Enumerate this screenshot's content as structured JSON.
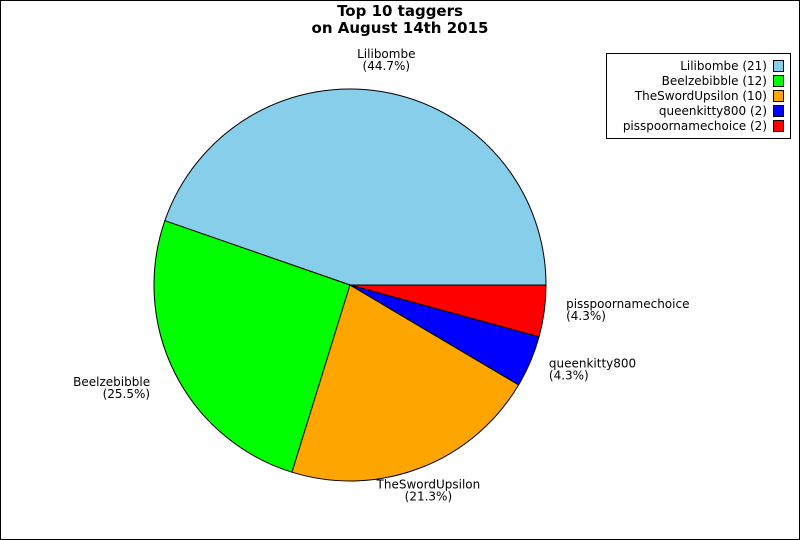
{
  "chart_data": {
    "type": "pie",
    "title": [
      "Top 10 taggers",
      "on August 14th 2015"
    ],
    "slices": [
      {
        "name": "Lilibombe",
        "value": 21,
        "percent_label": "(44.7%)",
        "legend": "Lilibombe (21)",
        "color": "#87ceeb"
      },
      {
        "name": "Beelzebibble",
        "value": 12,
        "percent_label": "(25.5%)",
        "legend": "Beelzebibble (12)",
        "color": "#00ff00"
      },
      {
        "name": "TheSwordUpsilon",
        "value": 10,
        "percent_label": "(21.3%)",
        "legend": "TheSwordUpsilon (10)",
        "color": "#ffa500"
      },
      {
        "name": "queenkitty800",
        "value": 2,
        "percent_label": "(4.3%)",
        "legend": "queenkitty800 (2)",
        "color": "#0000ff"
      },
      {
        "name": "pisspoornamechoice",
        "value": 2,
        "percent_label": "(4.3%)",
        "legend": "pisspoornamechoice (2)",
        "color": "#ff0000"
      }
    ],
    "start_angle_deg": 0,
    "direction": "counterclockwise",
    "legend_position": "top-right"
  }
}
